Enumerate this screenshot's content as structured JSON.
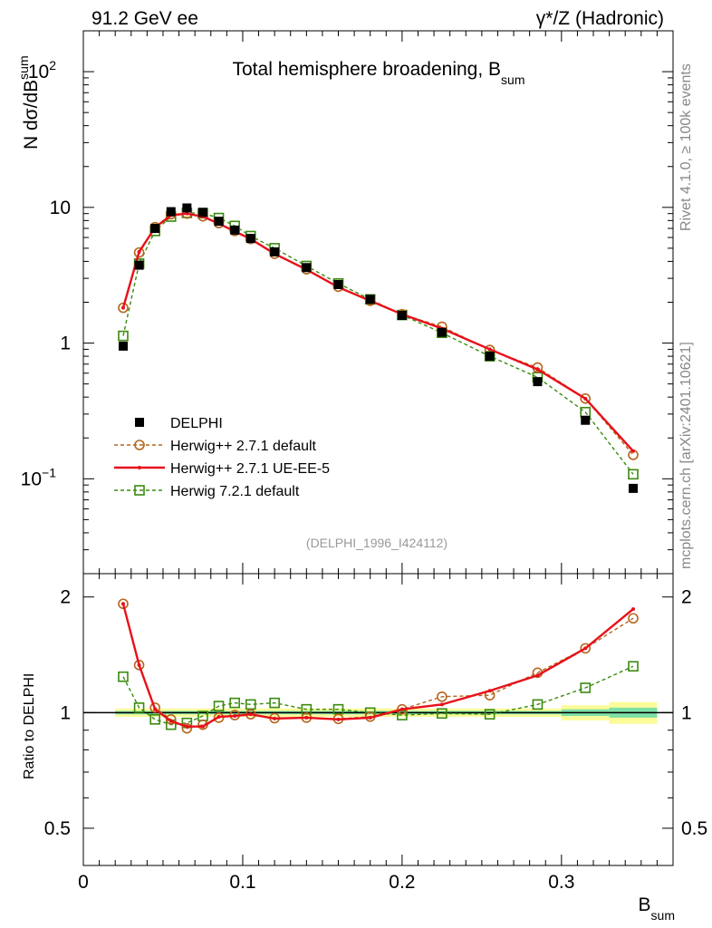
{
  "header": {
    "left": "91.2 GeV ee",
    "right_prefix": "γ*/Z",
    "right_suffix": "(Hadronic)"
  },
  "side_text": {
    "rivet": "Rivet 4.1.0, ≥ 100k events",
    "mcplots": "mcplots.cern.ch [arXiv:2401.10621]"
  },
  "main": {
    "title": "Total hemisphere broadening, B",
    "title_sub": "sum",
    "ylabel_a": "N  dσ/dB",
    "ylabel_sub": "sum",
    "watermark": "(DELPHI_1996_I424112)",
    "y_ticks": [
      {
        "value": 0.1,
        "base": "10",
        "exp": "−1"
      },
      {
        "value": 1,
        "base": "1",
        "exp": ""
      },
      {
        "value": 10,
        "base": "10",
        "exp": ""
      },
      {
        "value": 100,
        "base": "10",
        "exp": "2"
      }
    ]
  },
  "ratio": {
    "ylabel": "Ratio to DELPHI",
    "y_ticks": [
      {
        "value": 0.5,
        "label": "0.5"
      },
      {
        "value": 1,
        "label": "1"
      },
      {
        "value": 2,
        "label": "2"
      }
    ]
  },
  "xaxis": {
    "label": "B",
    "label_sub": "sum",
    "ticks": [
      {
        "value": 0,
        "label": "0"
      },
      {
        "value": 0.1,
        "label": "0.1"
      },
      {
        "value": 0.2,
        "label": "0.2"
      },
      {
        "value": 0.3,
        "label": "0.3"
      }
    ]
  },
  "legend": [
    {
      "label": "DELPHI",
      "key": "data"
    },
    {
      "label": "Herwig++ 2.7.1 default",
      "key": "h271"
    },
    {
      "label": "Herwig++ 2.7.1 UE-EE-5",
      "key": "h271ue"
    },
    {
      "label": "Herwig 7.2.1 default",
      "key": "h721"
    }
  ],
  "colors": {
    "data": "#000000",
    "h271": "#b5651d",
    "h271ue": "#e8101a",
    "h721": "#3a8a0e",
    "band_stat": "#7de0a6",
    "band_total": "#fbfb99"
  },
  "chart_data": {
    "type": "scatter",
    "xlim": [
      0,
      0.37
    ],
    "ylim_main": [
      0.02,
      200
    ],
    "ylim_ratio": [
      0.4,
      2.3
    ],
    "x": [
      0.025,
      0.035,
      0.045,
      0.055,
      0.065,
      0.075,
      0.085,
      0.095,
      0.105,
      0.12,
      0.14,
      0.16,
      0.18,
      0.2,
      0.225,
      0.255,
      0.285,
      0.315,
      0.345
    ],
    "xbins": [
      [
        0.02,
        0.03
      ],
      [
        0.03,
        0.04
      ],
      [
        0.04,
        0.05
      ],
      [
        0.05,
        0.06
      ],
      [
        0.06,
        0.07
      ],
      [
        0.07,
        0.08
      ],
      [
        0.08,
        0.09
      ],
      [
        0.09,
        0.1
      ],
      [
        0.1,
        0.11
      ],
      [
        0.11,
        0.13
      ],
      [
        0.13,
        0.15
      ],
      [
        0.15,
        0.17
      ],
      [
        0.17,
        0.19
      ],
      [
        0.19,
        0.21
      ],
      [
        0.21,
        0.24
      ],
      [
        0.24,
        0.27
      ],
      [
        0.27,
        0.3
      ],
      [
        0.3,
        0.33
      ],
      [
        0.33,
        0.36
      ]
    ],
    "series": [
      {
        "name": "DELPHI",
        "key": "data",
        "values": [
          0.95,
          3.75,
          7.0,
          9.3,
          9.9,
          9.2,
          7.9,
          6.8,
          5.9,
          4.7,
          3.6,
          2.7,
          2.1,
          1.6,
          1.2,
          0.8,
          0.52,
          0.27,
          0.085
        ]
      },
      {
        "name": "Herwig++ 2.7.1 default",
        "key": "h271",
        "values": [
          1.82,
          4.65,
          7.15,
          8.9,
          9.0,
          8.6,
          7.65,
          6.7,
          5.85,
          4.55,
          3.5,
          2.6,
          2.05,
          1.63,
          1.32,
          0.89,
          0.66,
          0.39,
          0.15
        ],
        "ratio": [
          1.92,
          1.33,
          1.03,
          0.96,
          0.91,
          0.93,
          0.97,
          0.985,
          0.99,
          0.967,
          0.97,
          0.963,
          0.976,
          1.02,
          1.1,
          1.11,
          1.27,
          1.47,
          1.76
        ]
      },
      {
        "name": "Herwig++ 2.7.1 UE-EE-5",
        "key": "h271ue",
        "values": [
          1.82,
          4.7,
          7.1,
          8.75,
          9.0,
          8.55,
          7.6,
          6.65,
          5.85,
          4.55,
          3.48,
          2.58,
          2.05,
          1.63,
          1.28,
          0.9,
          0.64,
          0.39,
          0.16
        ],
        "ratio": [
          1.92,
          1.33,
          1.02,
          0.95,
          0.92,
          0.92,
          0.975,
          0.98,
          0.99,
          0.965,
          0.97,
          0.96,
          0.97,
          1.02,
          1.05,
          1.14,
          1.25,
          1.47,
          1.86
        ]
      },
      {
        "name": "Herwig 7.2.1 default",
        "key": "h721",
        "values": [
          1.13,
          3.85,
          6.7,
          8.55,
          9.1,
          9.05,
          8.35,
          7.3,
          6.15,
          5.0,
          3.7,
          2.75,
          2.1,
          1.61,
          1.19,
          0.8,
          0.56,
          0.31,
          0.108
        ],
        "ratio": [
          1.24,
          1.03,
          0.96,
          0.93,
          0.94,
          0.98,
          1.04,
          1.06,
          1.05,
          1.06,
          1.02,
          1.02,
          1.0,
          0.985,
          0.995,
          0.99,
          1.05,
          1.16,
          1.32
        ]
      }
    ],
    "bands_ratio": [
      {
        "xlo": 0.02,
        "xhi": 0.3,
        "stat": 0.01,
        "total": 0.025
      },
      {
        "xlo": 0.3,
        "xhi": 0.33,
        "stat": 0.02,
        "total": 0.045
      },
      {
        "xlo": 0.33,
        "xhi": 0.36,
        "stat": 0.03,
        "total": 0.065
      }
    ]
  }
}
